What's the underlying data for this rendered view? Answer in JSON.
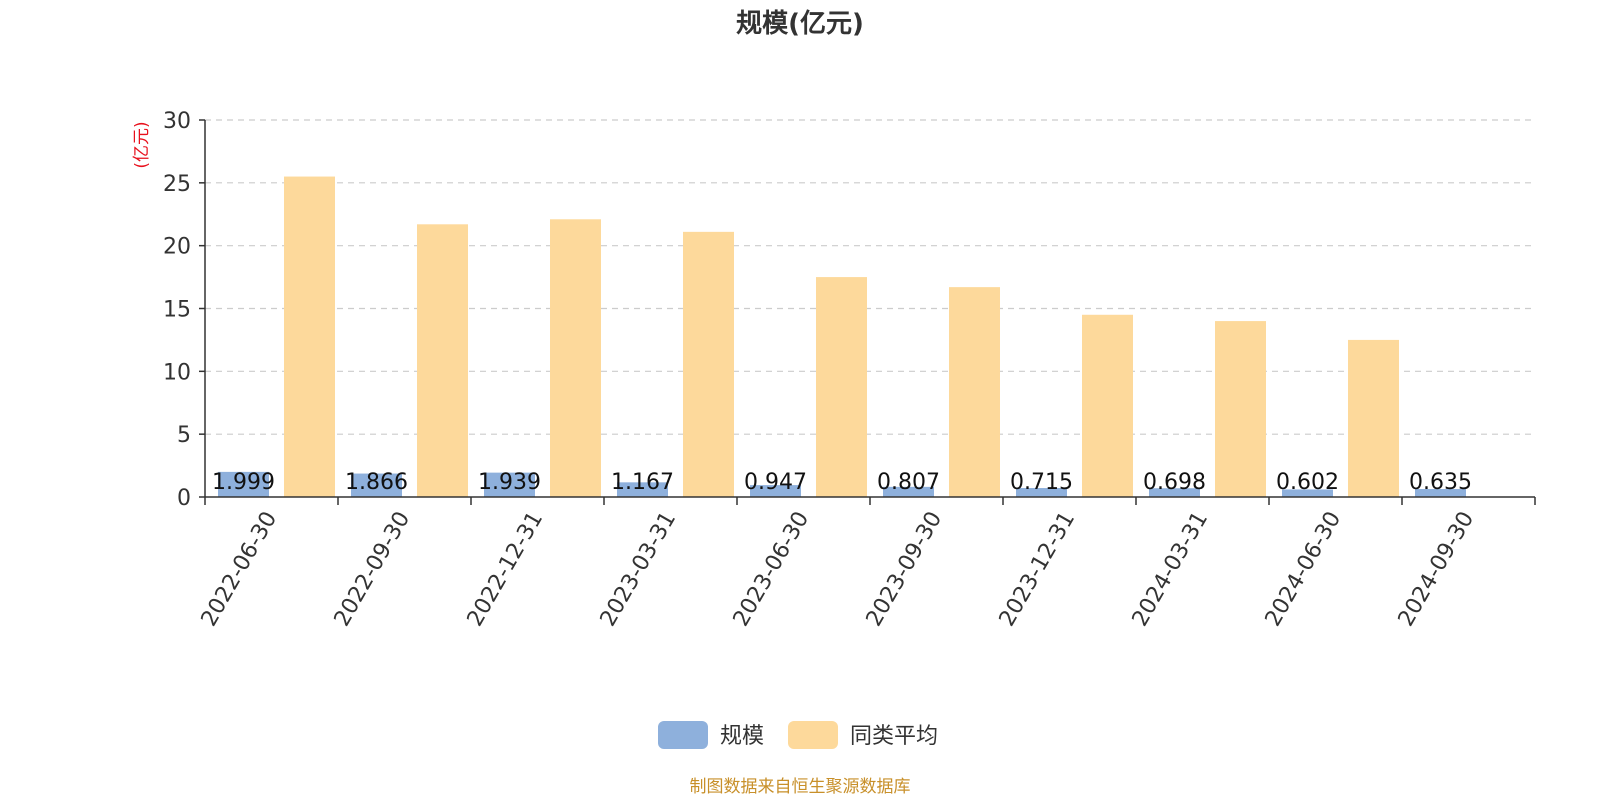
{
  "colors": {
    "series_scale": "#8eb0dc",
    "series_avg": "#fdd99b",
    "unit_label": "#e8101c",
    "source_text": "#c8902a"
  },
  "source_note": "制图数据来自恒生聚源数据库",
  "chart_data": {
    "type": "bar",
    "title": "规模(亿元)",
    "ylabel": "(亿元)",
    "xlabel": "",
    "ylim": [
      0,
      30
    ],
    "yticks": [
      0,
      5,
      10,
      15,
      20,
      25,
      30
    ],
    "grid": true,
    "legend_position": "bottom-center",
    "categories": [
      "2022-06-30",
      "2022-09-30",
      "2022-12-31",
      "2023-03-31",
      "2023-06-30",
      "2023-09-30",
      "2023-12-31",
      "2024-03-31",
      "2024-06-30",
      "2024-09-30"
    ],
    "series": [
      {
        "name": "规模",
        "values": [
          1.999,
          1.866,
          1.939,
          1.167,
          0.947,
          0.807,
          0.715,
          0.698,
          0.602,
          0.635
        ],
        "data_labels": [
          "1.999",
          "1.866",
          "1.939",
          "1.167",
          "0.947",
          "0.807",
          "0.715",
          "0.698",
          "0.602",
          "0.635"
        ]
      },
      {
        "name": "同类平均",
        "values": [
          25.5,
          21.7,
          22.1,
          21.1,
          17.5,
          16.7,
          14.5,
          14.0,
          12.5,
          null
        ]
      }
    ]
  }
}
